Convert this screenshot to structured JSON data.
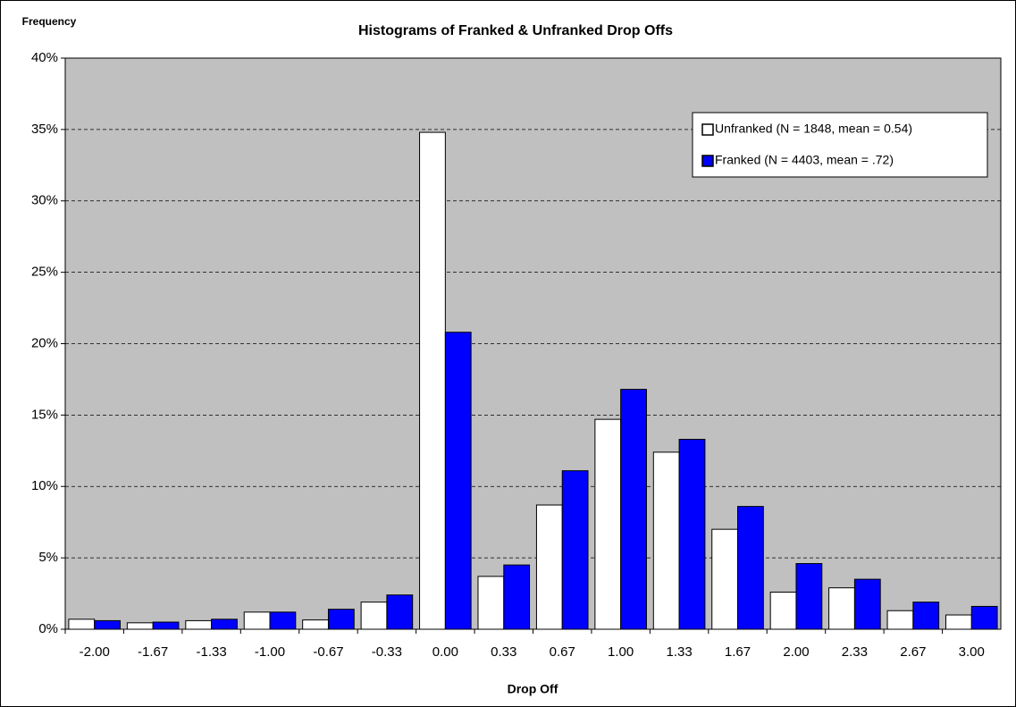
{
  "chart_data": {
    "type": "bar",
    "title": "Histograms of Franked & Unfranked Drop Offs",
    "y_label": "Frequency",
    "x_label": "Drop Off",
    "categories": [
      "-2.00",
      "-1.67",
      "-1.33",
      "-1.00",
      "-0.67",
      "-0.33",
      "0.00",
      "0.33",
      "0.67",
      "1.00",
      "1.33",
      "1.67",
      "2.00",
      "2.33",
      "2.67",
      "3.00"
    ],
    "series": [
      {
        "name": "Unfranked (N = 1848, mean = 0.54)",
        "color": "#ffffff",
        "values": [
          0.7,
          0.45,
          0.6,
          1.2,
          0.65,
          1.9,
          34.8,
          3.7,
          8.7,
          14.7,
          12.4,
          7.0,
          2.6,
          2.9,
          1.3,
          1.0
        ]
      },
      {
        "name": "Franked (N = 4403, mean = .72)",
        "color": "#0000ff",
        "values": [
          0.6,
          0.5,
          0.7,
          1.2,
          1.4,
          2.4,
          20.8,
          4.5,
          11.1,
          16.8,
          13.3,
          8.6,
          4.6,
          3.5,
          1.9,
          1.6
        ]
      }
    ],
    "ylim": [
      0,
      40
    ],
    "yticks": [
      {
        "value": 0,
        "label": "0%"
      },
      {
        "value": 5,
        "label": "5%"
      },
      {
        "value": 10,
        "label": "10%"
      },
      {
        "value": 15,
        "label": "15%"
      },
      {
        "value": 20,
        "label": "20%"
      },
      {
        "value": 25,
        "label": "25%"
      },
      {
        "value": 30,
        "label": "30%"
      },
      {
        "value": 35,
        "label": "35%"
      },
      {
        "value": 40,
        "label": "40%"
      }
    ],
    "grid": true,
    "legend_position": "upper right"
  }
}
